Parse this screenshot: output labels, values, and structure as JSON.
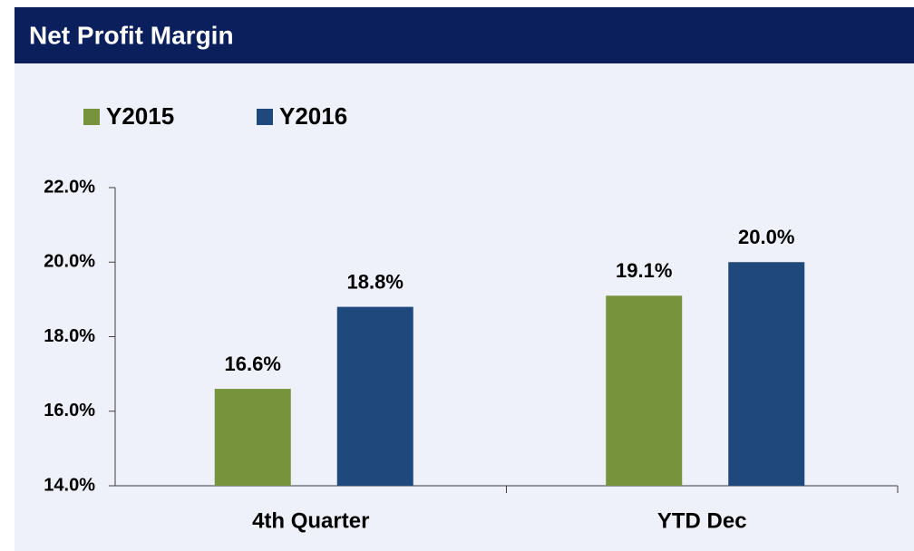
{
  "chart_data": {
    "type": "bar",
    "title": "Net Profit Margin",
    "categories": [
      "4th Quarter",
      "YTD Dec"
    ],
    "series": [
      {
        "name": "Y2015",
        "color": "#77933c",
        "values": [
          16.6,
          19.1
        ],
        "value_labels": [
          "16.6%",
          "19.1%"
        ]
      },
      {
        "name": "Y2016",
        "color": "#1f497d",
        "values": [
          18.8,
          20.0
        ],
        "value_labels": [
          "18.8%",
          "20.0%"
        ]
      }
    ],
    "ylim": [
      14,
      22
    ],
    "yticks": [
      {
        "value": 14,
        "label": "14.0%"
      },
      {
        "value": 16,
        "label": "16.0%"
      },
      {
        "value": 18,
        "label": "18.0%"
      },
      {
        "value": 20,
        "label": "20.0%"
      },
      {
        "value": 22,
        "label": "22.0%"
      }
    ],
    "legend": "top-left",
    "grid": false
  }
}
